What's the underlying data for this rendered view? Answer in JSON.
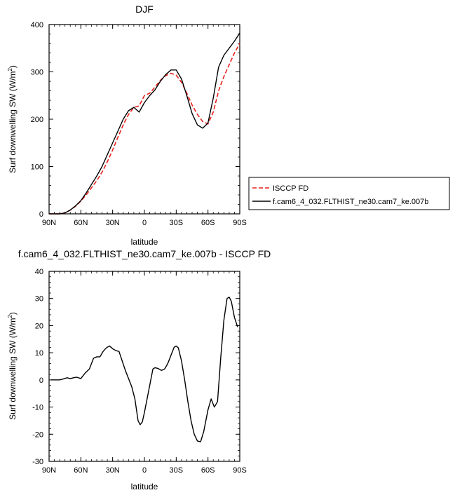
{
  "chart_data": [
    {
      "type": "line",
      "title": "DJF",
      "xlabel": "latitude",
      "ylabel": "Surf downwelling SW (W/m",
      "ylabel_sup": "2",
      "ylabel_end": ")",
      "xlim": [
        -90,
        90
      ],
      "ylim": [
        0,
        400
      ],
      "x_ticks": [
        -90,
        -60,
        -30,
        0,
        30,
        60,
        90
      ],
      "x_tick_labels": [
        "90N",
        "60N",
        "30N",
        "0",
        "30S",
        "60S",
        "90S"
      ],
      "y_ticks": [
        0,
        100,
        200,
        300,
        400
      ],
      "y_tick_labels": [
        "0",
        "100",
        "200",
        "300",
        "400"
      ],
      "legend_position": "right",
      "series": [
        {
          "name": "ISCCP FD",
          "color": "#e8211c",
          "dash": "dashed",
          "x": [
            -90,
            -85,
            -80,
            -75,
            -70,
            -65,
            -60,
            -55,
            -50,
            -45,
            -40,
            -35,
            -30,
            -25,
            -20,
            -15,
            -10,
            -5,
            0,
            5,
            10,
            15,
            20,
            25,
            30,
            35,
            40,
            45,
            50,
            55,
            60,
            65,
            70,
            75,
            80,
            85,
            90
          ],
          "y": [
            0,
            0,
            0,
            2,
            8,
            16,
            27,
            40,
            55,
            70,
            88,
            110,
            135,
            162,
            188,
            210,
            225,
            228,
            250,
            255,
            268,
            282,
            292,
            297,
            293,
            278,
            255,
            230,
            210,
            195,
            190,
            215,
            260,
            290,
            315,
            340,
            360
          ]
        },
        {
          "name": "f.cam6_4_032.FLTHIST_ne30.cam7_ke.007b",
          "color": "#000000",
          "dash": "solid",
          "x": [
            -90,
            -85,
            -80,
            -75,
            -70,
            -65,
            -60,
            -55,
            -50,
            -45,
            -40,
            -35,
            -30,
            -25,
            -20,
            -15,
            -10,
            -5,
            0,
            5,
            10,
            15,
            20,
            25,
            30,
            35,
            40,
            45,
            50,
            55,
            60,
            65,
            70,
            75,
            80,
            85,
            90
          ],
          "y": [
            0,
            0,
            0,
            2,
            8,
            17,
            28,
            44,
            62,
            80,
            100,
            125,
            150,
            175,
            200,
            218,
            225,
            215,
            235,
            250,
            262,
            280,
            294,
            304,
            304,
            285,
            250,
            212,
            188,
            181,
            192,
            245,
            310,
            335,
            350,
            365,
            382
          ]
        }
      ]
    },
    {
      "type": "line",
      "title": "f.cam6_4_032.FLTHIST_ne30.cam7_ke.007b - ISCCP FD",
      "xlabel": "latitude",
      "ylabel": "Surf downwelling SW (W/m",
      "ylabel_sup": "2",
      "ylabel_end": ")",
      "xlim": [
        -90,
        90
      ],
      "ylim": [
        -30,
        40
      ],
      "x_ticks": [
        -90,
        -60,
        -30,
        0,
        30,
        60,
        90
      ],
      "x_tick_labels": [
        "90N",
        "60N",
        "30N",
        "0",
        "30S",
        "60S",
        "90S"
      ],
      "y_ticks": [
        -30,
        -20,
        -10,
        0,
        10,
        20,
        30,
        40
      ],
      "y_tick_labels": [
        "-30",
        "-20",
        "-10",
        "0",
        "10",
        "20",
        "30",
        "40"
      ],
      "series": [
        {
          "color": "#000000",
          "dash": "solid",
          "x": [
            -88,
            -80,
            -77,
            -73,
            -70,
            -67,
            -64,
            -60,
            -56,
            -52,
            -48,
            -45,
            -42,
            -39,
            -36,
            -33,
            -30,
            -27,
            -24,
            -21,
            -18,
            -15,
            -12,
            -9,
            -6,
            -4,
            -2,
            0,
            2,
            5,
            8,
            10,
            13,
            16,
            19,
            22,
            25,
            28,
            30,
            32,
            35,
            38,
            41,
            44,
            47,
            50,
            53,
            56,
            60,
            63,
            66,
            69,
            72,
            75,
            78,
            80,
            82,
            85,
            88
          ],
          "y": [
            0,
            0,
            0.3,
            0.8,
            0.5,
            0.8,
            1,
            0.5,
            2.5,
            4,
            8,
            8.5,
            8.5,
            10.5,
            11.8,
            12.5,
            11.5,
            10.8,
            10.5,
            7,
            3.5,
            0.5,
            -2.5,
            -7,
            -15,
            -16.5,
            -15.5,
            -12,
            -8,
            -2,
            4,
            4.5,
            4.2,
            3.5,
            4,
            6,
            9,
            12,
            12.5,
            11.8,
            7,
            0,
            -8,
            -15,
            -20,
            -22.5,
            -22.8,
            -19,
            -11,
            -7,
            -10,
            -8,
            8,
            22,
            30,
            30.5,
            29,
            23,
            19.5
          ]
        }
      ]
    }
  ]
}
